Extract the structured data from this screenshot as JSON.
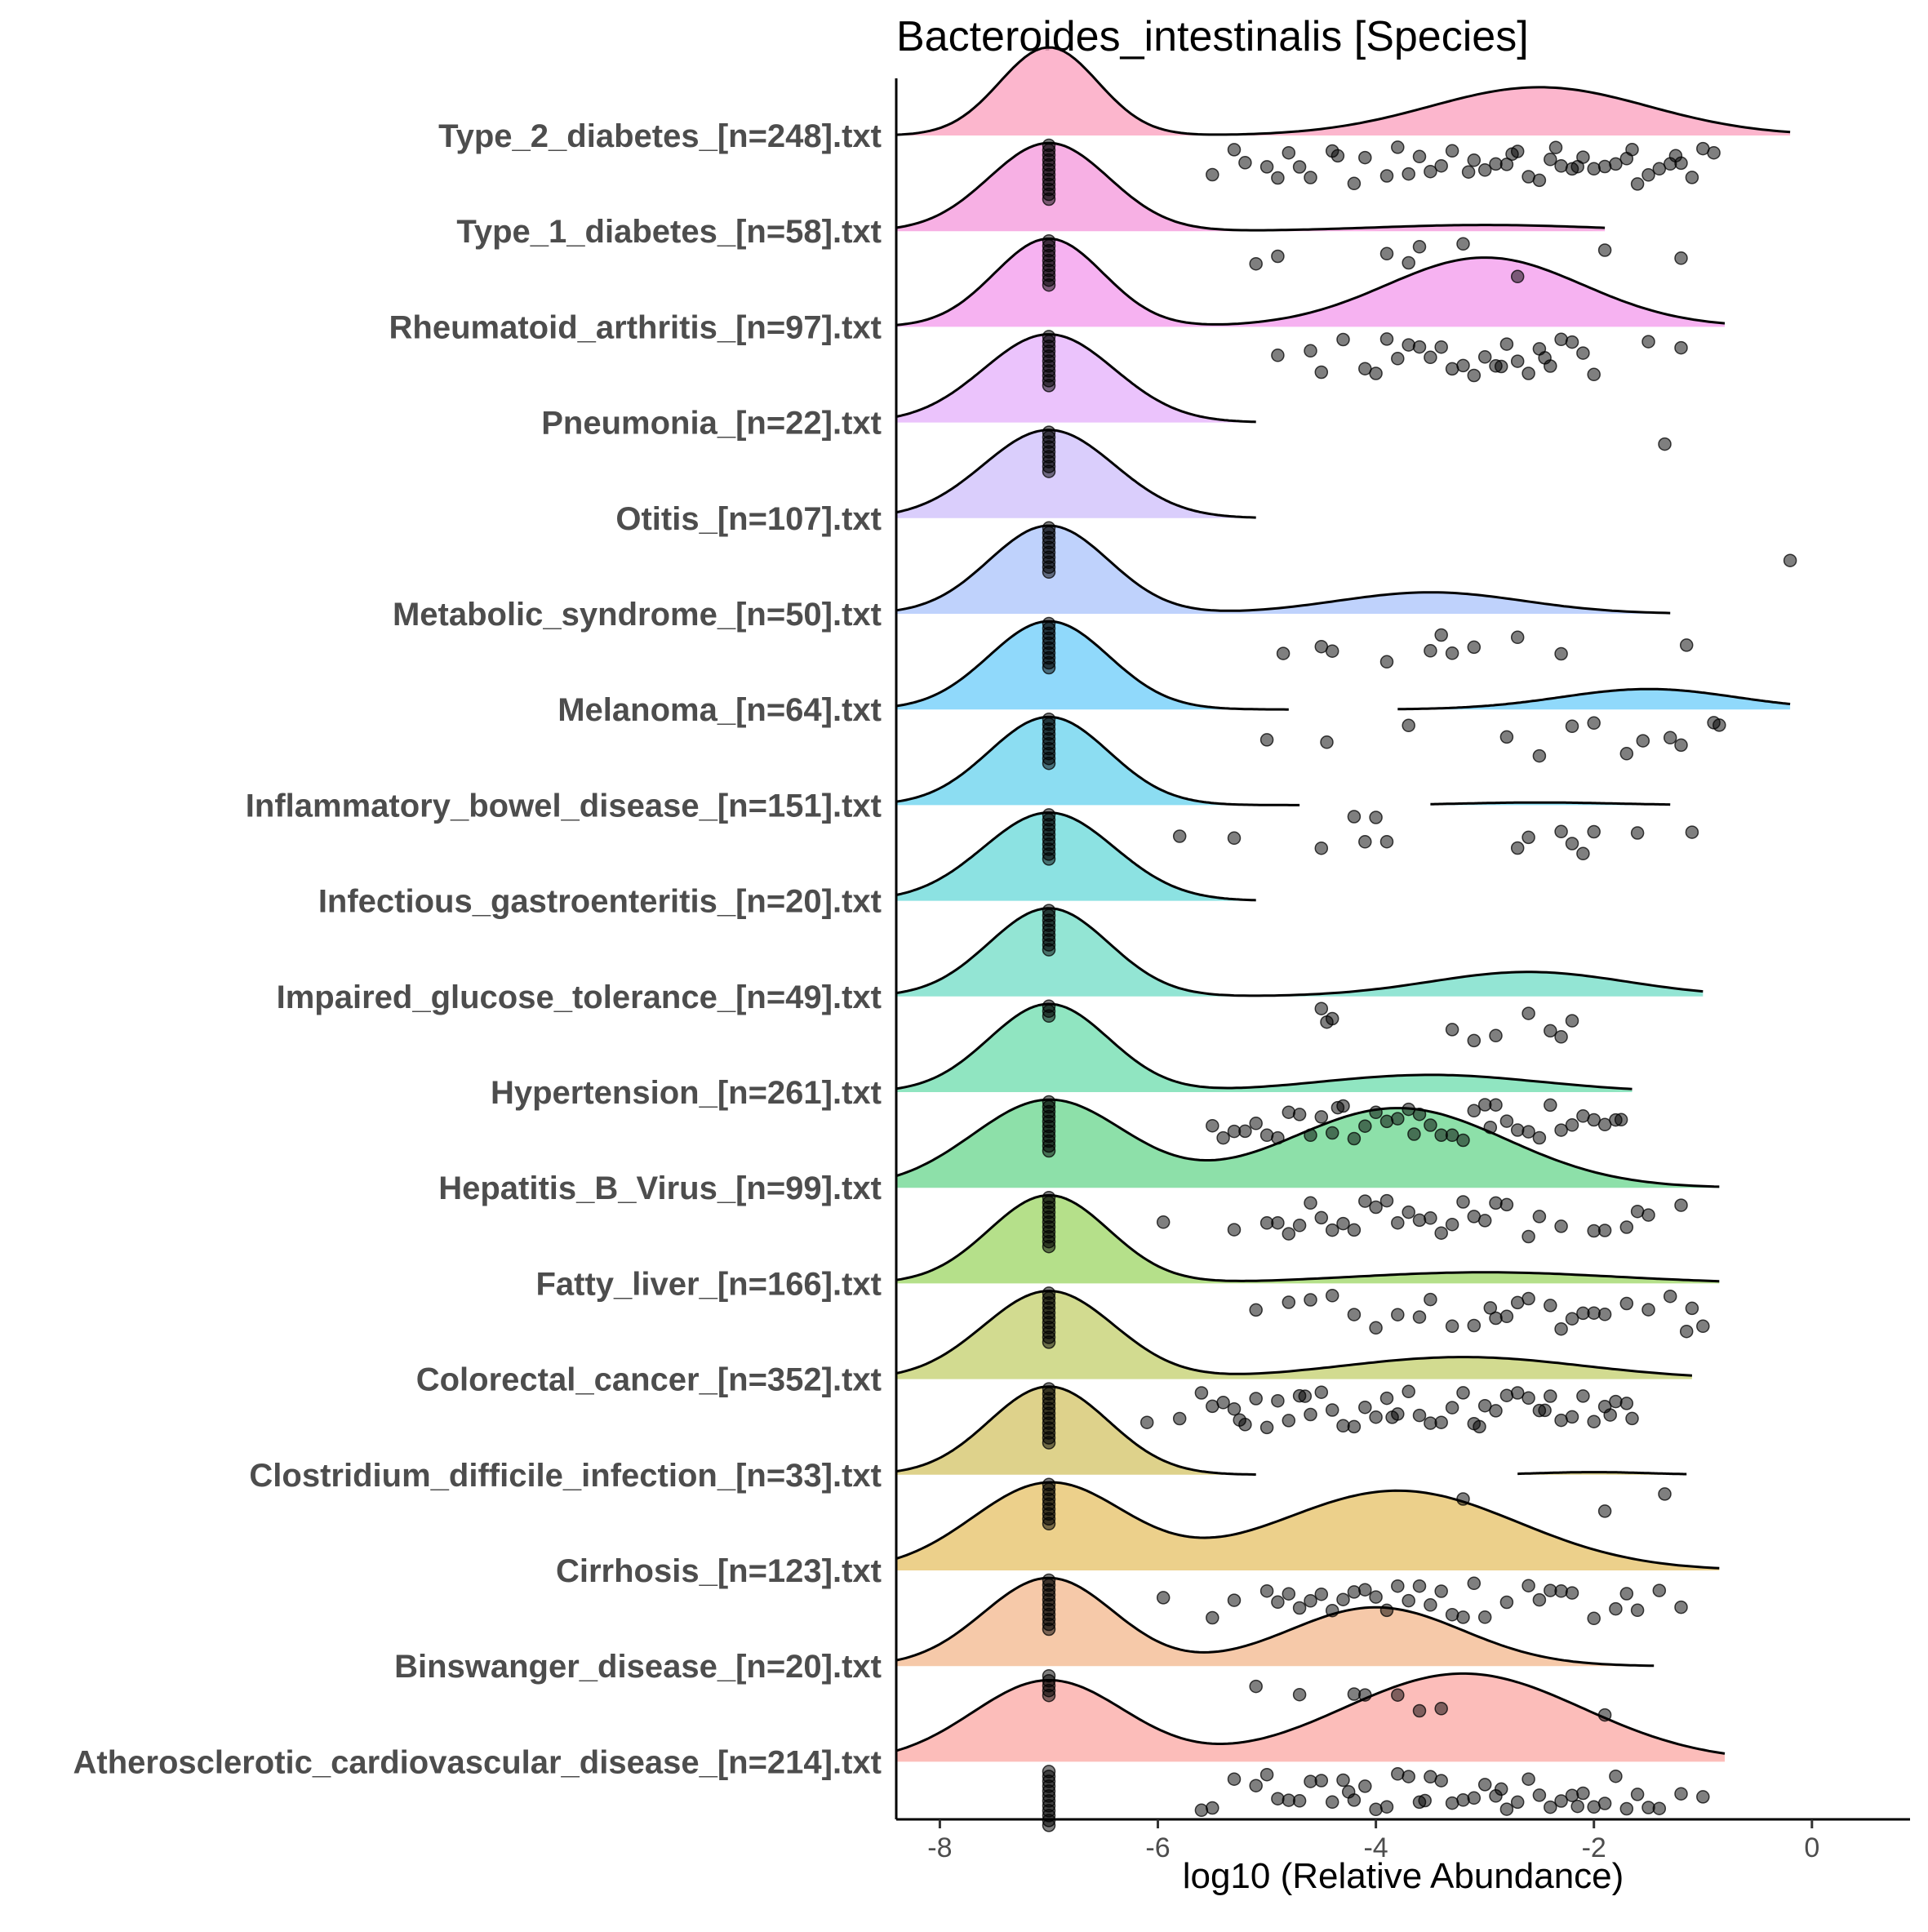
{
  "chart_data": {
    "type": "ridgeline",
    "title": "Bacteroides_intestinalis [Species]",
    "xlabel": "log10 (Relative Abundance)",
    "ylabel": "",
    "xlim": [
      -8.4,
      0.9
    ],
    "xticks": [
      -8,
      -6,
      -4,
      -2,
      0
    ],
    "xtick_labels": [
      "-8",
      "-6",
      "-4",
      "-2",
      "0"
    ],
    "grid": false,
    "series": [
      {
        "name": "Type_2_diabetes_[n=248].txt",
        "color": "#FBA9C4",
        "curve": {
          "range": [
            -8.4,
            -0.2
          ],
          "peaks": [
            [
              -7.0,
              0.45,
              0.95
            ],
            [
              -2.5,
              1.0,
              0.52
            ]
          ]
        },
        "zeros": 12,
        "points": [
          -5.5,
          -5.3,
          -5.2,
          -4.9,
          -4.8,
          -4.6,
          -4.4,
          -4.2,
          -4.1,
          -3.9,
          -3.8,
          -3.6,
          -3.5,
          -3.4,
          -3.3,
          -3.1,
          -3.0,
          -2.9,
          -2.8,
          -2.7,
          -2.6,
          -2.5,
          -2.4,
          -2.3,
          -2.2,
          -2.1,
          -2.0,
          -1.9,
          -1.8,
          -1.7,
          -1.6,
          -1.5,
          -1.4,
          -1.3,
          -1.2,
          -1.1,
          -1.0,
          -0.9,
          -4.7,
          -3.7,
          -2.75,
          -2.15,
          -1.65,
          -5.0,
          -4.35,
          -3.15,
          -2.35,
          -1.25
        ]
      },
      {
        "name": "Type_1_diabetes_[n=58].txt",
        "color": "#F6A2DF",
        "curve": {
          "range": [
            -8.4,
            -1.9
          ],
          "peaks": [
            [
              -7.0,
              0.55,
              1.0
            ],
            [
              -3.0,
              1.0,
              0.07
            ]
          ]
        },
        "zeros": 10,
        "points": [
          -5.1,
          -4.9,
          -3.9,
          -3.7,
          -3.6,
          -3.2,
          -2.7,
          -1.9,
          -1.2
        ]
      },
      {
        "name": "Rheumatoid_arthritis_[n=97].txt",
        "color": "#F5A4EE",
        "curve": {
          "range": [
            -8.4,
            -0.8
          ],
          "peaks": [
            [
              -7.0,
              0.5,
              0.7
            ],
            [
              -3.0,
              0.9,
              0.55
            ]
          ]
        },
        "zeros": 11,
        "points": [
          -4.9,
          -4.6,
          -4.5,
          -4.3,
          -4.1,
          -3.9,
          -3.8,
          -3.6,
          -3.5,
          -3.3,
          -3.2,
          -3.1,
          -3.0,
          -2.9,
          -2.8,
          -2.7,
          -2.6,
          -2.5,
          -2.4,
          -2.3,
          -2.2,
          -2.1,
          -2.0,
          -1.5,
          -1.2,
          -3.4,
          -2.85,
          -2.45,
          -4.0,
          -3.7
        ]
      },
      {
        "name": "Pneumonia_[n=22].txt",
        "color": "#E8B9FC",
        "curve": {
          "range": [
            -8.4,
            -5.1
          ],
          "peaks": [
            [
              -7.0,
              0.6,
              1.0
            ]
          ]
        },
        "zeros": 9,
        "points": [
          -1.35
        ]
      },
      {
        "name": "Otitis_[n=107].txt",
        "color": "#D4C5FC",
        "curve": {
          "range": [
            -8.4,
            -5.1
          ],
          "peaks": [
            [
              -7.0,
              0.6,
              1.0
            ]
          ]
        },
        "zeros": 10,
        "points": [
          -0.2
        ]
      },
      {
        "name": "Metabolic_syndrome_[n=50].txt",
        "color": "#B4CAFC",
        "curve": {
          "range": [
            -8.4,
            -1.3
          ],
          "peaks": [
            [
              -7.0,
              0.55,
              0.82
            ],
            [
              -3.5,
              0.85,
              0.2
            ]
          ]
        },
        "zeros": 10,
        "points": [
          -4.85,
          -4.5,
          -4.4,
          -3.9,
          -3.5,
          -3.4,
          -3.3,
          -3.1,
          -2.7,
          -2.3,
          -1.15
        ]
      },
      {
        "name": "Melanoma_[n=64].txt",
        "color": "#7DD2FA",
        "curve": {
          "range": [
            -8.4,
            -0.2
          ],
          "peaks": [
            [
              -7.0,
              0.55,
              0.95
            ],
            [
              -1.5,
              0.8,
              0.22
            ]
          ],
          "gap": [
            -4.8,
            -3.8
          ]
        },
        "zeros": 10,
        "points": [
          -5.0,
          -4.45,
          -3.7,
          -2.8,
          -2.5,
          -2.2,
          -2.0,
          -1.7,
          -1.55,
          -1.3,
          -1.2,
          -0.9,
          -0.85
        ]
      },
      {
        "name": "Inflammatory_bowel_disease_[n=151].txt",
        "color": "#78D7F0",
        "curve": {
          "range": [
            -8.4,
            -1.3
          ],
          "peaks": [
            [
              -7.0,
              0.55,
              1.0
            ],
            [
              -2.5,
              0.7,
              0.03
            ]
          ],
          "gap": [
            -4.7,
            -3.5
          ]
        },
        "zeros": 10,
        "points": [
          -5.8,
          -5.3,
          -4.5,
          -4.2,
          -4.1,
          -3.9,
          -2.7,
          -2.6,
          -2.3,
          -2.2,
          -2.1,
          -2.0,
          -1.6,
          -1.1,
          -4.0
        ]
      },
      {
        "name": "Infectious_gastroenteritis_[n=20].txt",
        "color": "#78DDDD",
        "curve": {
          "range": [
            -8.4,
            -5.1
          ],
          "peaks": [
            [
              -7.0,
              0.6,
              1.0
            ]
          ]
        },
        "zeros": 9,
        "points": []
      },
      {
        "name": "Impaired_glucose_tolerance_[n=49].txt",
        "color": "#80E0CC",
        "curve": {
          "range": [
            -8.4,
            -1.0
          ],
          "peaks": [
            [
              -7.0,
              0.55,
              0.9
            ],
            [
              -2.6,
              0.9,
              0.25
            ]
          ]
        },
        "zeros": 3,
        "points": [
          -4.5,
          -4.45,
          -4.4,
          -3.3,
          -3.1,
          -2.9,
          -2.6,
          -2.4,
          -2.3,
          -2.2
        ]
      },
      {
        "name": "Hypertension_[n=261].txt",
        "color": "#7CE0B6",
        "curve": {
          "range": [
            -8.4,
            -1.65
          ],
          "peaks": [
            [
              -7.0,
              0.55,
              0.92
            ],
            [
              -3.5,
              1.0,
              0.18
            ]
          ]
        },
        "zeros": 11,
        "points": [
          -5.5,
          -5.4,
          -5.3,
          -5.2,
          -5.1,
          -5.0,
          -4.9,
          -4.8,
          -4.7,
          -4.6,
          -4.5,
          -4.4,
          -4.3,
          -4.2,
          -4.1,
          -4.0,
          -3.9,
          -3.8,
          -3.7,
          -3.6,
          -3.5,
          -3.4,
          -3.3,
          -3.2,
          -3.1,
          -3.0,
          -2.9,
          -2.8,
          -2.7,
          -2.6,
          -2.5,
          -2.4,
          -2.3,
          -2.2,
          -2.1,
          -2.0,
          -1.9,
          -1.8,
          -1.75,
          -3.65,
          -4.35,
          -2.95
        ]
      },
      {
        "name": "Hepatitis_B_Virus_[n=99].txt",
        "color": "#79DB9A",
        "curve": {
          "range": [
            -8.4,
            -0.85
          ],
          "peaks": [
            [
              -7.0,
              0.7,
              0.55
            ],
            [
              -3.8,
              1.0,
              0.5
            ]
          ]
        },
        "zeros": 11,
        "points": [
          -5.95,
          -5.3,
          -5.0,
          -4.9,
          -4.8,
          -4.7,
          -4.6,
          -4.5,
          -4.4,
          -4.3,
          -4.2,
          -4.1,
          -4.0,
          -3.9,
          -3.8,
          -3.7,
          -3.6,
          -3.5,
          -3.4,
          -3.3,
          -3.2,
          -3.1,
          -3.0,
          -2.9,
          -2.8,
          -2.6,
          -2.5,
          -2.3,
          -2.0,
          -1.9,
          -1.7,
          -1.6,
          -1.5,
          -1.2
        ]
      },
      {
        "name": "Fatty_liver_[n=166].txt",
        "color": "#A8DA75",
        "curve": {
          "range": [
            -8.4,
            -0.85
          ],
          "peaks": [
            [
              -7.0,
              0.55,
              0.95
            ],
            [
              -3.0,
              1.2,
              0.12
            ]
          ]
        },
        "zeros": 11,
        "points": [
          -5.1,
          -4.8,
          -4.6,
          -4.4,
          -4.2,
          -4.0,
          -3.8,
          -3.5,
          -3.3,
          -3.1,
          -2.9,
          -2.8,
          -2.7,
          -2.6,
          -2.4,
          -2.3,
          -2.1,
          -2.0,
          -1.9,
          -1.7,
          -1.5,
          -1.3,
          -1.15,
          -1.1,
          -1.0,
          -3.6,
          -2.95,
          -2.2
        ]
      },
      {
        "name": "Colorectal_cancer_[n=352].txt",
        "color": "#CAD57C",
        "curve": {
          "range": [
            -8.4,
            -1.1
          ],
          "peaks": [
            [
              -7.0,
              0.6,
              0.72
            ],
            [
              -3.2,
              1.1,
              0.18
            ]
          ]
        },
        "zeros": 12,
        "points": [
          -6.1,
          -5.8,
          -5.6,
          -5.5,
          -5.4,
          -5.3,
          -5.2,
          -5.1,
          -5.0,
          -4.9,
          -4.8,
          -4.7,
          -4.6,
          -4.5,
          -4.4,
          -4.3,
          -4.2,
          -4.1,
          -4.0,
          -3.9,
          -3.8,
          -3.7,
          -3.6,
          -3.5,
          -3.4,
          -3.3,
          -3.2,
          -3.1,
          -3.0,
          -2.9,
          -2.8,
          -2.7,
          -2.6,
          -2.5,
          -2.4,
          -2.3,
          -2.2,
          -2.1,
          -2.0,
          -1.9,
          -1.8,
          -1.7,
          -1.65,
          -5.25,
          -4.65,
          -3.85,
          -3.05,
          -2.45,
          -1.85
        ]
      },
      {
        "name": "Clostridium_difficile_infection_[n=33].txt",
        "color": "#D8CA77",
        "curve": {
          "range": [
            -8.4,
            -1.15
          ],
          "peaks": [
            [
              -7.0,
              0.55,
              1.0
            ],
            [
              -2.0,
              0.5,
              0.03
            ]
          ],
          "gap": [
            -5.1,
            -2.7
          ]
        },
        "zeros": 9,
        "points": [
          -3.2,
          -1.9,
          -1.35
        ]
      },
      {
        "name": "Cirrhosis_[n=123].txt",
        "color": "#E9C877",
        "curve": {
          "range": [
            -8.4,
            -0.85
          ],
          "peaks": [
            [
              -7.0,
              0.7,
              0.6
            ],
            [
              -3.8,
              1.1,
              0.55
            ]
          ]
        },
        "zeros": 11,
        "points": [
          -5.95,
          -5.5,
          -5.3,
          -5.0,
          -4.9,
          -4.8,
          -4.7,
          -4.6,
          -4.5,
          -4.4,
          -4.3,
          -4.2,
          -4.1,
          -4.0,
          -3.9,
          -3.8,
          -3.7,
          -3.6,
          -3.5,
          -3.4,
          -3.3,
          -3.2,
          -3.1,
          -3.0,
          -2.8,
          -2.6,
          -2.5,
          -2.4,
          -2.3,
          -2.2,
          -2.0,
          -1.8,
          -1.7,
          -1.6,
          -1.4,
          -1.2
        ]
      },
      {
        "name": "Binswanger_disease_[n=20].txt",
        "color": "#F5C09A",
        "curve": {
          "range": [
            -8.4,
            -1.45
          ],
          "peaks": [
            [
              -7.0,
              0.6,
              0.75
            ],
            [
              -4.0,
              0.8,
              0.5
            ]
          ]
        },
        "zeros": 5,
        "points": [
          -5.1,
          -4.7,
          -4.2,
          -4.1,
          -3.8,
          -3.6,
          -3.4,
          -1.9
        ]
      },
      {
        "name": "Atherosclerotic_cardiovascular_disease_[n=214].txt",
        "color": "#FCB2AE",
        "curve": {
          "range": [
            -8.4,
            -0.8
          ],
          "peaks": [
            [
              -7.0,
              0.7,
              0.6
            ],
            [
              -3.2,
              1.1,
              0.65
            ]
          ]
        },
        "zeros": 12,
        "points": [
          -5.6,
          -5.5,
          -5.3,
          -5.1,
          -5.0,
          -4.9,
          -4.8,
          -4.7,
          -4.6,
          -4.5,
          -4.4,
          -4.3,
          -4.2,
          -4.1,
          -4.0,
          -3.9,
          -3.8,
          -3.7,
          -3.6,
          -3.5,
          -3.4,
          -3.3,
          -3.2,
          -3.1,
          -3.0,
          -2.9,
          -2.8,
          -2.7,
          -2.6,
          -2.5,
          -2.4,
          -2.3,
          -2.2,
          -2.1,
          -2.0,
          -1.9,
          -1.8,
          -1.7,
          -1.6,
          -1.5,
          -1.4,
          -1.2,
          -1.0,
          -4.25,
          -3.55,
          -2.85,
          -2.15
        ]
      }
    ]
  }
}
